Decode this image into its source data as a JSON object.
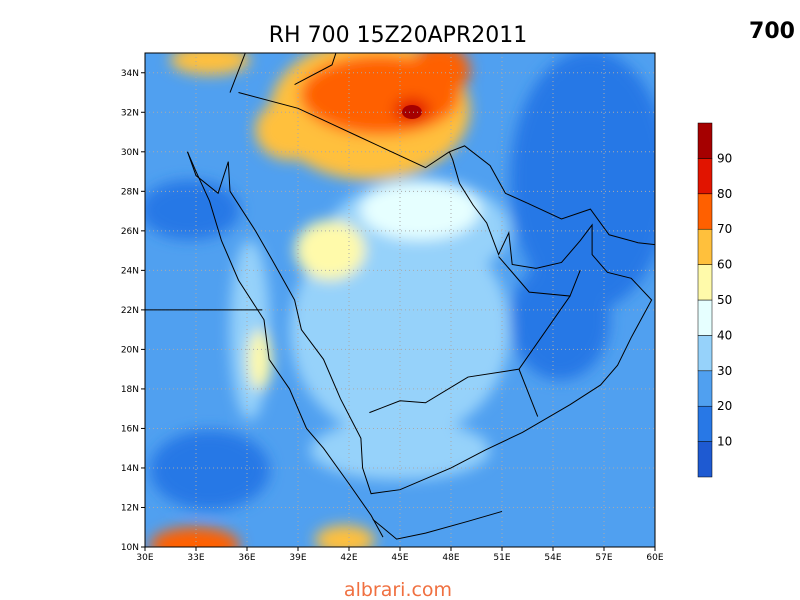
{
  "title": "RH 700 15Z20APR2011",
  "level": "700",
  "x_axis_labels": [
    "30E",
    "33E",
    "36E",
    "39E",
    "42E",
    "45E",
    "48E",
    "51E",
    "54E",
    "57E",
    "60E"
  ],
  "y_axis_labels": [
    "10N",
    "12N",
    "14N",
    "16N",
    "18N",
    "20N",
    "22N",
    "24N",
    "26N",
    "28N",
    "30N",
    "32N",
    "34N"
  ],
  "colorbar_labels": [
    "10",
    "20",
    "30",
    "40",
    "50",
    "60",
    "70",
    "80",
    "90"
  ],
  "watermark": "albrari.com"
}
